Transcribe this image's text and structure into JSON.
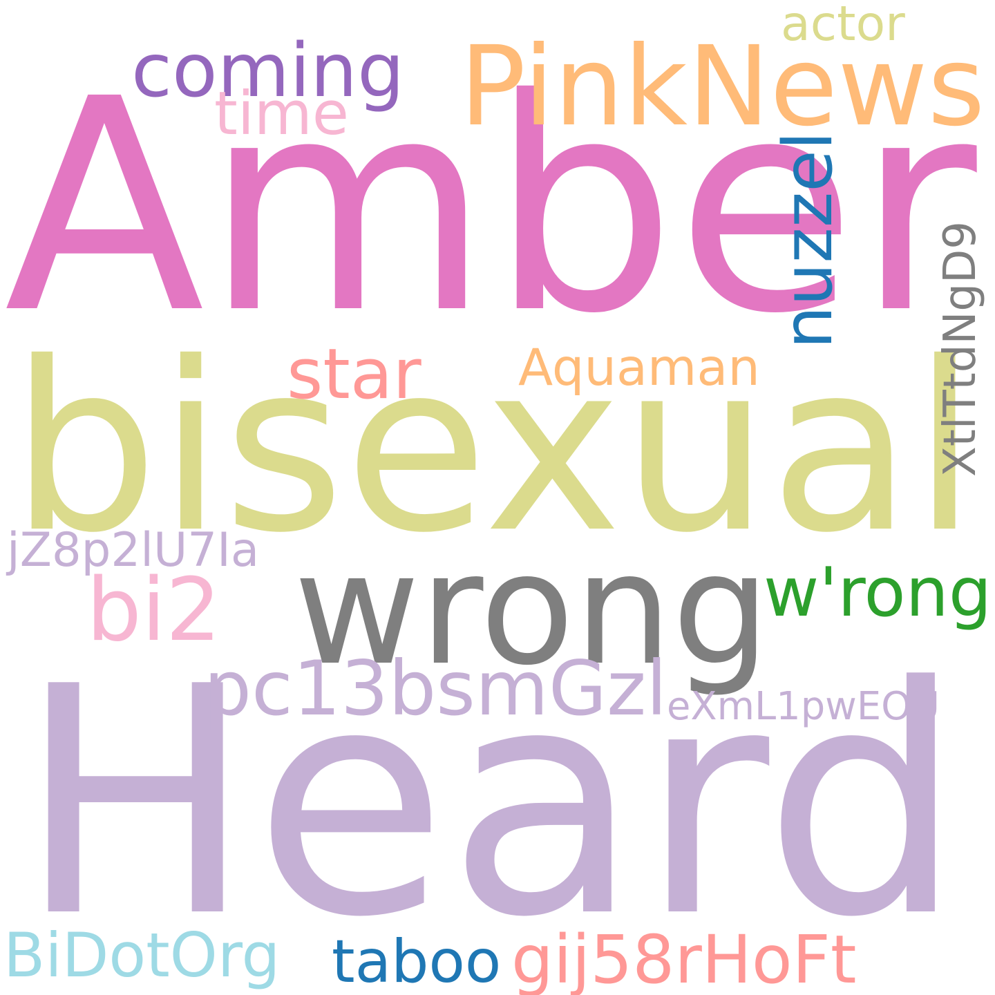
{
  "words": [
    {
      "text": "Amber",
      "color": "#e377c2"
    },
    {
      "text": "Heard",
      "color": "#c5b0d5"
    },
    {
      "text": "bisexual",
      "color": "#dbdb8d"
    },
    {
      "text": "wrong",
      "color": "#7f7f7f"
    },
    {
      "text": "PinkNews",
      "color": "#ffbb78"
    },
    {
      "text": "w'rong",
      "color": "#2ca02c"
    },
    {
      "text": "pc13bsmGzl",
      "color": "#c5b0d5"
    },
    {
      "text": "coming",
      "color": "#9467bd"
    },
    {
      "text": "nuzzel",
      "color": "#1f77b4"
    },
    {
      "text": "bi2",
      "color": "#f7b6d2"
    },
    {
      "text": "Aquaman",
      "color": "#ffbb78"
    },
    {
      "text": "gij58rHoFt",
      "color": "#ff9896"
    },
    {
      "text": "BiDotOrg",
      "color": "#9edae5"
    },
    {
      "text": "XtlTtdNgD9",
      "color": "#7f7f7f"
    },
    {
      "text": "star",
      "color": "#ff9896"
    },
    {
      "text": "taboo",
      "color": "#1f77b4"
    },
    {
      "text": "time",
      "color": "#f7b6d2"
    },
    {
      "text": "eXmL1pwEOU",
      "color": "#c5b0d5"
    },
    {
      "text": "jZ8p2lU7Ia",
      "color": "#c5b0d5"
    },
    {
      "text": "actor",
      "color": "#dbdb8d"
    }
  ]
}
